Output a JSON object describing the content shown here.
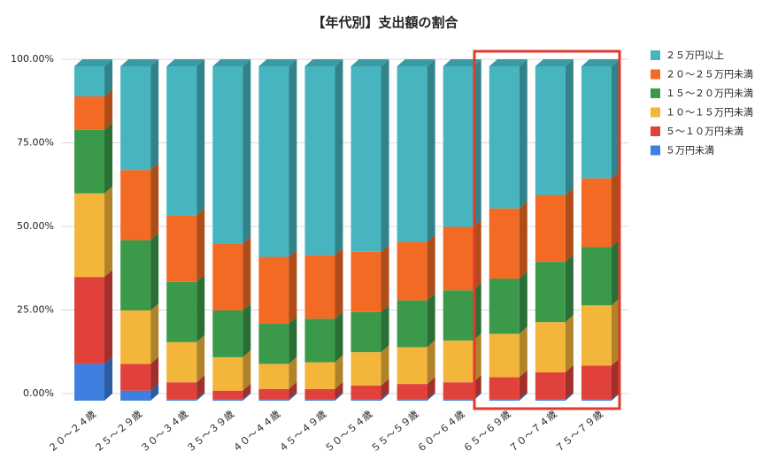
{
  "chart_data": {
    "type": "bar3d_stacked",
    "title": "【年代別】支出額の割合",
    "categories": [
      "２０～２４歳",
      "２５～２９歳",
      "３０～３４歳",
      "３５～３９歳",
      "４０～４４歳",
      "４５～４９歳",
      "５０～５４歳",
      "５５～５９歳",
      "６０～６４歳",
      "６５～６９歳",
      "７０～７４歳",
      "７５～７９歳"
    ],
    "series": [
      {
        "name": "５万円未満",
        "color": "#3f7fe0",
        "values": [
          11,
          3,
          0.5,
          0.5,
          0.5,
          0.5,
          0.5,
          0.5,
          0.5,
          0.5,
          0.5,
          0.5
        ]
      },
      {
        "name": "５～１０万円未満",
        "color": "#e0413a",
        "values": [
          26,
          8,
          5,
          2.5,
          3,
          3,
          4,
          4.5,
          5,
          6.5,
          8,
          10
        ]
      },
      {
        "name": "１０～１５万円未満",
        "color": "#f4b63a",
        "values": [
          25,
          16,
          12,
          10,
          7.5,
          8,
          10,
          11,
          12.5,
          13,
          15,
          18
        ]
      },
      {
        "name": "１５～２０万円未満",
        "color": "#3a9a4a",
        "values": [
          19,
          21,
          18,
          14,
          12,
          13,
          12,
          14,
          15,
          16.5,
          18,
          17.5
        ]
      },
      {
        "name": "２０～２５万円未満",
        "color": "#f26a24",
        "values": [
          10,
          21,
          20,
          20,
          20,
          19,
          18,
          17.5,
          19,
          21,
          20,
          20.5
        ]
      },
      {
        "name": "２５万円以上",
        "color": "#46b5c0",
        "values": [
          9,
          31,
          44.5,
          53,
          57,
          56.5,
          55.5,
          52.5,
          48,
          42.5,
          38.5,
          33.5
        ]
      }
    ],
    "ylim": [
      0,
      100
    ],
    "yticks": [
      {
        "value": 0,
        "label": "0.00%"
      },
      {
        "value": 25,
        "label": "25.00%"
      },
      {
        "value": 50,
        "label": "50.00%"
      },
      {
        "value": 75,
        "label": "75.00%"
      },
      {
        "value": 100,
        "label": "100.00%"
      }
    ],
    "grid": true
  }
}
